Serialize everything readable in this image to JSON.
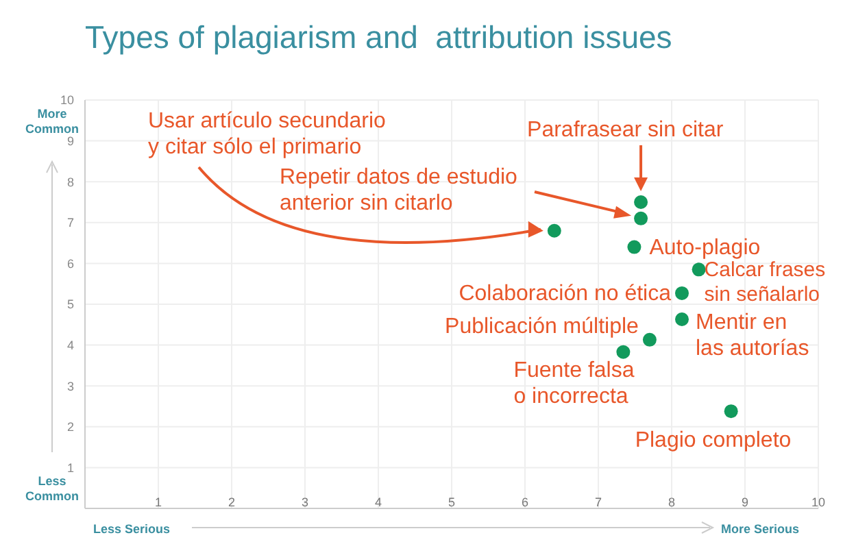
{
  "chart_data": {
    "type": "scatter",
    "title": "Types of plagiarism and  attribution issues",
    "x": [
      6.4,
      7.58,
      7.58,
      7.49,
      8.37,
      8.14,
      8.14,
      7.7,
      7.34,
      8.81
    ],
    "values": [
      6.8,
      7.5,
      7.1,
      6.4,
      5.85,
      5.27,
      4.63,
      4.13,
      3.83,
      2.38
    ],
    "color": "#129a5c",
    "marker": "circle",
    "xlim": [
      0,
      10
    ],
    "xticks": [
      1,
      2,
      3,
      4,
      5,
      6,
      7,
      8,
      9,
      10
    ],
    "ylim": [
      0,
      10
    ],
    "yticks": [
      1,
      2,
      3,
      4,
      5,
      6,
      7,
      8,
      9,
      10
    ],
    "grid": true,
    "annotations": [
      "More\nCommon",
      "Less\nCommon",
      "Less Serious",
      "More Serious",
      "Usar artículo secundario\ny citar sólo el primario",
      {
        "text": "Parafrasear sin citar",
        "x": 7.58,
        "y": 7.5
      },
      "Repetir datos de estudio\nanterior sin citarlo",
      {
        "text": "Auto-plagio",
        "x": 7.49,
        "y": 6.4
      },
      {
        "text": "Calcar frases\nsin señalarlo",
        "x": 8.37,
        "y": 5.85
      },
      {
        "text": "Colaboración no ética",
        "x": 8.14,
        "y": 5.27
      },
      {
        "text": "Mentir en\nlas autorías",
        "x": 8.14,
        "y": 4.63
      },
      {
        "text": "Publicación múltiple",
        "x": 7.7,
        "y": 4.13
      },
      {
        "text": "Fuente falsa\no incorrecta",
        "x": 7.34,
        "y": 3.83
      },
      {
        "text": "Plagio completo",
        "x": 8.81,
        "y": 2.38
      }
    ]
  }
}
